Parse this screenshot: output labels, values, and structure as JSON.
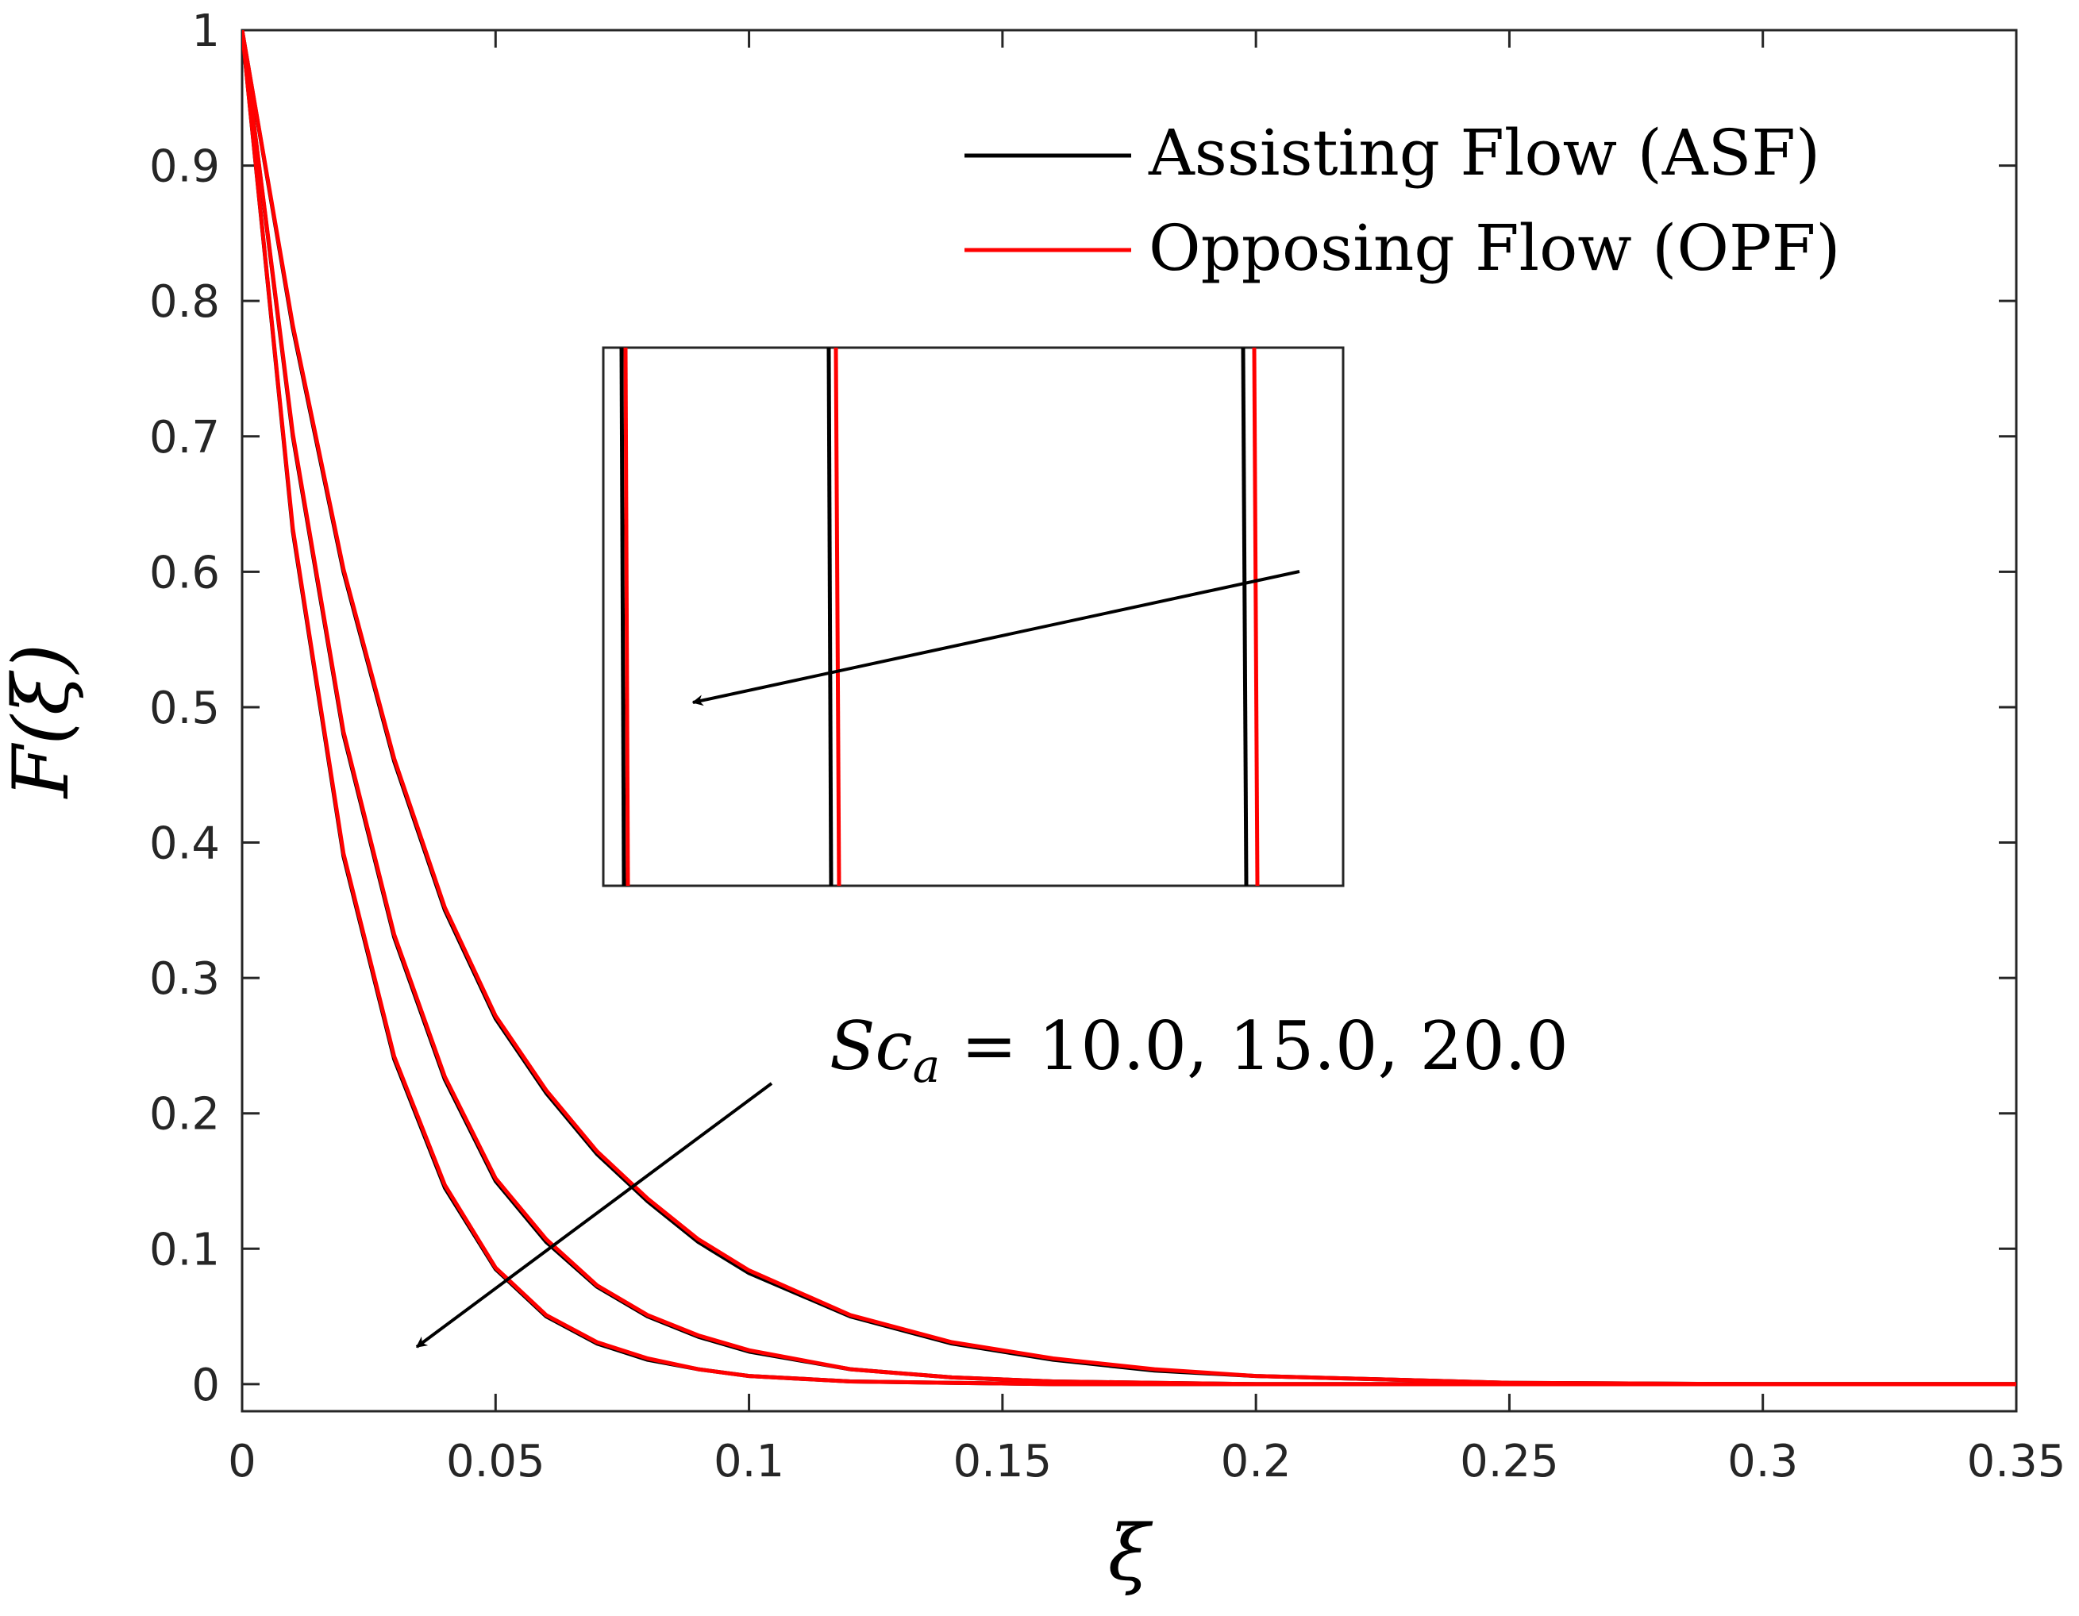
{
  "chart_data": {
    "type": "line",
    "title": "",
    "xlabel": "ξ",
    "ylabel": "F(ξ)",
    "xlim": [
      0,
      0.35
    ],
    "ylim": [
      -0.02,
      1.0
    ],
    "x_ticks": [
      0,
      0.05,
      0.1,
      0.15,
      0.2,
      0.25,
      0.3,
      0.35
    ],
    "y_ticks": [
      0,
      0.1,
      0.2,
      0.3,
      0.4,
      0.5,
      0.6,
      0.7,
      0.8,
      0.9,
      1
    ],
    "x_tick_labels": [
      "0",
      "0.05",
      "0.1",
      "0.15",
      "0.2",
      "0.25",
      "0.3",
      "0.35"
    ],
    "y_tick_labels": [
      "0",
      "0.1",
      "0.2",
      "0.3",
      "0.4",
      "0.5",
      "0.6",
      "0.7",
      "0.8",
      "0.9",
      "1"
    ],
    "grid": false,
    "legend": {
      "position": "top-right",
      "entries": [
        {
          "label": "Assisting Flow (ASF)",
          "color": "#000000"
        },
        {
          "label": "Opposing Flow (OPF)",
          "color": "#ff0000"
        }
      ]
    },
    "series": [
      {
        "name": "ASF, Sc_a = 10.0",
        "flow": "Assisting Flow (ASF)",
        "Sc_a": 10.0,
        "color": "#000000",
        "x": [
          0,
          0.01,
          0.02,
          0.03,
          0.04,
          0.05,
          0.06,
          0.07,
          0.08,
          0.09,
          0.1,
          0.12,
          0.14,
          0.16,
          0.18,
          0.2,
          0.25,
          0.3,
          0.35
        ],
        "y": [
          1.0,
          0.78,
          0.6,
          0.46,
          0.35,
          0.27,
          0.215,
          0.17,
          0.135,
          0.105,
          0.082,
          0.05,
          0.03,
          0.018,
          0.01,
          0.006,
          0.001,
          0.0,
          0.0
        ]
      },
      {
        "name": "OPF, Sc_a = 10.0",
        "flow": "Opposing Flow (OPF)",
        "Sc_a": 10.0,
        "color": "#ff0000",
        "x": [
          0,
          0.01,
          0.02,
          0.03,
          0.04,
          0.05,
          0.06,
          0.07,
          0.08,
          0.09,
          0.1,
          0.12,
          0.14,
          0.16,
          0.18,
          0.2,
          0.25,
          0.3,
          0.35
        ],
        "y": [
          1.0,
          0.782,
          0.602,
          0.462,
          0.352,
          0.272,
          0.217,
          0.172,
          0.137,
          0.107,
          0.084,
          0.051,
          0.031,
          0.019,
          0.011,
          0.006,
          0.001,
          0.0,
          0.0
        ]
      },
      {
        "name": "ASF, Sc_a = 15.0",
        "flow": "Assisting Flow (ASF)",
        "Sc_a": 15.0,
        "color": "#000000",
        "x": [
          0,
          0.01,
          0.02,
          0.03,
          0.04,
          0.05,
          0.06,
          0.07,
          0.08,
          0.09,
          0.1,
          0.12,
          0.14,
          0.16,
          0.18,
          0.2,
          0.25,
          0.3,
          0.35
        ],
        "y": [
          1.0,
          0.7,
          0.48,
          0.33,
          0.225,
          0.15,
          0.105,
          0.072,
          0.05,
          0.035,
          0.024,
          0.011,
          0.005,
          0.002,
          0.001,
          0.0,
          0.0,
          0.0,
          0.0
        ]
      },
      {
        "name": "OPF, Sc_a = 15.0",
        "flow": "Opposing Flow (OPF)",
        "Sc_a": 15.0,
        "color": "#ff0000",
        "x": [
          0,
          0.01,
          0.02,
          0.03,
          0.04,
          0.05,
          0.06,
          0.07,
          0.08,
          0.09,
          0.1,
          0.12,
          0.14,
          0.16,
          0.18,
          0.2,
          0.25,
          0.3,
          0.35
        ],
        "y": [
          1.0,
          0.702,
          0.482,
          0.332,
          0.227,
          0.152,
          0.107,
          0.073,
          0.051,
          0.036,
          0.025,
          0.011,
          0.005,
          0.002,
          0.001,
          0.0,
          0.0,
          0.0,
          0.0
        ]
      },
      {
        "name": "ASF, Sc_a = 20.0",
        "flow": "Assisting Flow (ASF)",
        "Sc_a": 20.0,
        "color": "#000000",
        "x": [
          0,
          0.01,
          0.02,
          0.03,
          0.04,
          0.05,
          0.06,
          0.07,
          0.08,
          0.09,
          0.1,
          0.12,
          0.14,
          0.16,
          0.18,
          0.2,
          0.25,
          0.3,
          0.35
        ],
        "y": [
          1.0,
          0.63,
          0.39,
          0.24,
          0.145,
          0.085,
          0.05,
          0.03,
          0.018,
          0.011,
          0.006,
          0.002,
          0.001,
          0.0,
          0.0,
          0.0,
          0.0,
          0.0,
          0.0
        ]
      },
      {
        "name": "OPF, Sc_a = 20.0",
        "flow": "Opposing Flow (OPF)",
        "Sc_a": 20.0,
        "color": "#ff0000",
        "x": [
          0,
          0.01,
          0.02,
          0.03,
          0.04,
          0.05,
          0.06,
          0.07,
          0.08,
          0.09,
          0.1,
          0.12,
          0.14,
          0.16,
          0.18,
          0.2,
          0.25,
          0.3,
          0.35
        ],
        "y": [
          1.0,
          0.632,
          0.392,
          0.242,
          0.147,
          0.086,
          0.051,
          0.031,
          0.019,
          0.011,
          0.006,
          0.002,
          0.001,
          0.0,
          0.0,
          0.0,
          0.0,
          0.0,
          0.0
        ]
      }
    ],
    "inset": {
      "description": "zoom of the curves, each ASF line slightly left of the matching OPF line",
      "lines": [
        {
          "Sc_a": 20.0,
          "flow": "Assisting Flow (ASF)",
          "color": "#000000"
        },
        {
          "Sc_a": 20.0,
          "flow": "Opposing Flow (OPF)",
          "color": "#ff0000"
        },
        {
          "Sc_a": 15.0,
          "flow": "Assisting Flow (ASF)",
          "color": "#000000"
        },
        {
          "Sc_a": 15.0,
          "flow": "Opposing Flow (OPF)",
          "color": "#ff0000"
        },
        {
          "Sc_a": 10.0,
          "flow": "Assisting Flow (ASF)",
          "color": "#000000"
        },
        {
          "Sc_a": 10.0,
          "flow": "Opposing Flow (OPF)",
          "color": "#ff0000"
        }
      ]
    },
    "annotation": {
      "sc_symbol": "Sc",
      "sc_subscript": "a",
      "sc_values_text": " = 10.0, 15.0, 20.0",
      "arrow_direction": "toward lower-left (increasing Sc_a)"
    }
  }
}
